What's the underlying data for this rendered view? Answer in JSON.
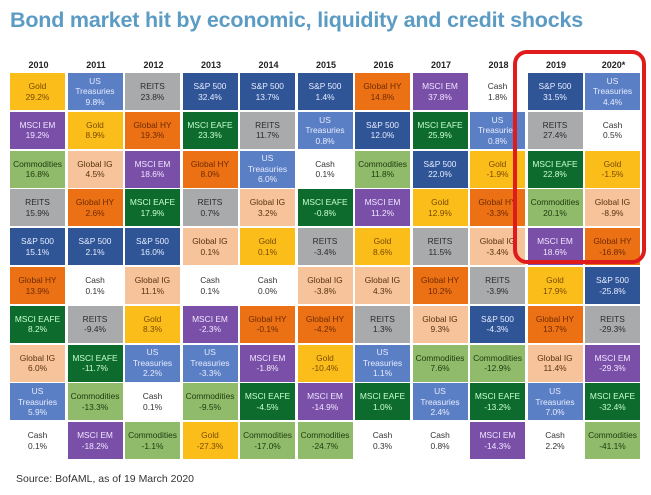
{
  "title": "Bond market hit by economic, liquidity and credit shocks",
  "source": "Source: BofAML, as of 19 March 2020",
  "chart_data": {
    "type": "table",
    "title": "Bond market hit by economic, liquidity and credit shocks",
    "highlighted_columns": [
      "2019",
      "2020*"
    ],
    "colors": {
      "Gold": "#fbbd1a",
      "US Treasuries": "#5b7fc4",
      "REITS": "#a9aaab",
      "S&P 500": "#2f5597",
      "Global HY": "#ec7115",
      "MSCI EM": "#7a4fa8",
      "Cash": "#ffffff",
      "MSCI EAFE": "#0d6b2e",
      "Global IG": "#f6c39b",
      "Commodities": "#8fbb6a",
      "highlight": "#e01b1b"
    },
    "columns": [
      {
        "year": "2010",
        "cells": [
          {
            "asset": "Gold",
            "value": "29.2%"
          },
          {
            "asset": "MSCI EM",
            "value": "19.2%"
          },
          {
            "asset": "Commodities",
            "value": "16.8%"
          },
          {
            "asset": "REITS",
            "value": "15.9%"
          },
          {
            "asset": "S&P 500",
            "value": "15.1%"
          },
          {
            "asset": "Global HY",
            "value": "13.9%"
          },
          {
            "asset": "MSCI EAFE",
            "value": "8.2%"
          },
          {
            "asset": "Global IG",
            "value": "6.0%"
          },
          {
            "asset": "US Treasuries",
            "value": "5.9%"
          },
          {
            "asset": "Cash",
            "value": "0.1%"
          }
        ]
      },
      {
        "year": "2011",
        "cells": [
          {
            "asset": "US Treasuries",
            "value": "9.8%"
          },
          {
            "asset": "Gold",
            "value": "8.9%"
          },
          {
            "asset": "Global IG",
            "value": "4.5%"
          },
          {
            "asset": "Global HY",
            "value": "2.6%"
          },
          {
            "asset": "S&P 500",
            "value": "2.1%"
          },
          {
            "asset": "Cash",
            "value": "0.1%"
          },
          {
            "asset": "REITS",
            "value": "-9.4%"
          },
          {
            "asset": "MSCI EAFE",
            "value": "-11.7%"
          },
          {
            "asset": "Commodities",
            "value": "-13.3%"
          },
          {
            "asset": "MSCI EM",
            "value": "-18.2%"
          }
        ]
      },
      {
        "year": "2012",
        "cells": [
          {
            "asset": "REITS",
            "value": "23.8%"
          },
          {
            "asset": "Global HY",
            "value": "19.3%"
          },
          {
            "asset": "MSCI EM",
            "value": "18.6%"
          },
          {
            "asset": "MSCI EAFE",
            "value": "17.9%"
          },
          {
            "asset": "S&P 500",
            "value": "16.0%"
          },
          {
            "asset": "Global IG",
            "value": "11.1%"
          },
          {
            "asset": "Gold",
            "value": "8.3%"
          },
          {
            "asset": "US Treasuries",
            "value": "2.2%"
          },
          {
            "asset": "Cash",
            "value": "0.1%"
          },
          {
            "asset": "Commodities",
            "value": "-1.1%"
          }
        ]
      },
      {
        "year": "2013",
        "cells": [
          {
            "asset": "S&P 500",
            "value": "32.4%"
          },
          {
            "asset": "MSCI EAFE",
            "value": "23.3%"
          },
          {
            "asset": "Global HY",
            "value": "8.0%"
          },
          {
            "asset": "REITS",
            "value": "0.7%"
          },
          {
            "asset": "Global IG",
            "value": "0.1%"
          },
          {
            "asset": "Cash",
            "value": "0.1%"
          },
          {
            "asset": "MSCI EM",
            "value": "-2.3%"
          },
          {
            "asset": "US Treasuries",
            "value": "-3.3%"
          },
          {
            "asset": "Commodities",
            "value": "-9.5%"
          },
          {
            "asset": "Gold",
            "value": "-27.3%"
          }
        ]
      },
      {
        "year": "2014",
        "cells": [
          {
            "asset": "S&P 500",
            "value": "13.7%"
          },
          {
            "asset": "REITS",
            "value": "11.7%"
          },
          {
            "asset": "US Treasuries",
            "value": "6.0%"
          },
          {
            "asset": "Global IG",
            "value": "3.2%"
          },
          {
            "asset": "Gold",
            "value": "0.1%"
          },
          {
            "asset": "Cash",
            "value": "0.0%"
          },
          {
            "asset": "Global HY",
            "value": "-0.1%"
          },
          {
            "asset": "MSCI EM",
            "value": "-1.8%"
          },
          {
            "asset": "MSCI EAFE",
            "value": "-4.5%"
          },
          {
            "asset": "Commodities",
            "value": "-17.0%"
          }
        ]
      },
      {
        "year": "2015",
        "cells": [
          {
            "asset": "S&P 500",
            "value": "1.4%"
          },
          {
            "asset": "US Treasuries",
            "value": "0.8%"
          },
          {
            "asset": "Cash",
            "value": "0.1%"
          },
          {
            "asset": "MSCI EAFE",
            "value": "-0.8%"
          },
          {
            "asset": "REITS",
            "value": "-3.4%"
          },
          {
            "asset": "Global IG",
            "value": "-3.8%"
          },
          {
            "asset": "Global HY",
            "value": "-4.2%"
          },
          {
            "asset": "Gold",
            "value": "-10.4%"
          },
          {
            "asset": "MSCI EM",
            "value": "-14.9%"
          },
          {
            "asset": "Commodities",
            "value": "-24.7%"
          }
        ]
      },
      {
        "year": "2016",
        "cells": [
          {
            "asset": "Global HY",
            "value": "14.8%"
          },
          {
            "asset": "S&P 500",
            "value": "12.0%"
          },
          {
            "asset": "Commodities",
            "value": "11.8%"
          },
          {
            "asset": "MSCI EM",
            "value": "11.2%"
          },
          {
            "asset": "Gold",
            "value": "8.6%"
          },
          {
            "asset": "Global IG",
            "value": "4.3%"
          },
          {
            "asset": "REITS",
            "value": "1.3%"
          },
          {
            "asset": "US Treasuries",
            "value": "1.1%"
          },
          {
            "asset": "MSCI EAFE",
            "value": "1.0%"
          },
          {
            "asset": "Cash",
            "value": "0.3%"
          }
        ]
      },
      {
        "year": "2017",
        "cells": [
          {
            "asset": "MSCI EM",
            "value": "37.8%"
          },
          {
            "asset": "MSCI EAFE",
            "value": "25.9%"
          },
          {
            "asset": "S&P 500",
            "value": "22.0%"
          },
          {
            "asset": "Gold",
            "value": "12.9%"
          },
          {
            "asset": "REITS",
            "value": "11.5%"
          },
          {
            "asset": "Global HY",
            "value": "10.2%"
          },
          {
            "asset": "Global IG",
            "value": "9.3%"
          },
          {
            "asset": "Commodities",
            "value": "7.6%"
          },
          {
            "asset": "US Treasuries",
            "value": "2.4%"
          },
          {
            "asset": "Cash",
            "value": "0.8%"
          }
        ]
      },
      {
        "year": "2018",
        "cells": [
          {
            "asset": "Cash",
            "value": "1.8%"
          },
          {
            "asset": "US Treasuries",
            "value": "0.8%"
          },
          {
            "asset": "Gold",
            "value": "-1.9%"
          },
          {
            "asset": "Global HY",
            "value": "-3.3%"
          },
          {
            "asset": "Global IG",
            "value": "-3.4%"
          },
          {
            "asset": "REITS",
            "value": "-3.9%"
          },
          {
            "asset": "S&P 500",
            "value": "-4.3%"
          },
          {
            "asset": "Commodities",
            "value": "-12.9%"
          },
          {
            "asset": "MSCI EAFE",
            "value": "-13.2%"
          },
          {
            "asset": "MSCI EM",
            "value": "-14.3%"
          }
        ]
      },
      {
        "year": "2019",
        "cells": [
          {
            "asset": "S&P 500",
            "value": "31.5%"
          },
          {
            "asset": "REITS",
            "value": "27.4%"
          },
          {
            "asset": "MSCI EAFE",
            "value": "22.8%"
          },
          {
            "asset": "Commodities",
            "value": "20.1%"
          },
          {
            "asset": "MSCI EM",
            "value": "18.6%"
          },
          {
            "asset": "Gold",
            "value": "17.9%"
          },
          {
            "asset": "Global HY",
            "value": "13.7%"
          },
          {
            "asset": "Global IG",
            "value": "11.4%"
          },
          {
            "asset": "US Treasuries",
            "value": "7.0%"
          },
          {
            "asset": "Cash",
            "value": "2.2%"
          }
        ]
      },
      {
        "year": "2020*",
        "cells": [
          {
            "asset": "US Treasuries",
            "value": "4.4%"
          },
          {
            "asset": "Cash",
            "value": "0.5%"
          },
          {
            "asset": "Gold",
            "value": "-1.5%"
          },
          {
            "asset": "Global IG",
            "value": "-8.9%"
          },
          {
            "asset": "Global HY",
            "value": "-16.8%"
          },
          {
            "asset": "S&P 500",
            "value": "-25.8%"
          },
          {
            "asset": "REITS",
            "value": "-29.3%"
          },
          {
            "asset": "MSCI EM",
            "value": "-29.3%"
          },
          {
            "asset": "MSCI EAFE",
            "value": "-32.4%"
          },
          {
            "asset": "Commodities",
            "value": "-41.1%"
          }
        ]
      }
    ]
  }
}
